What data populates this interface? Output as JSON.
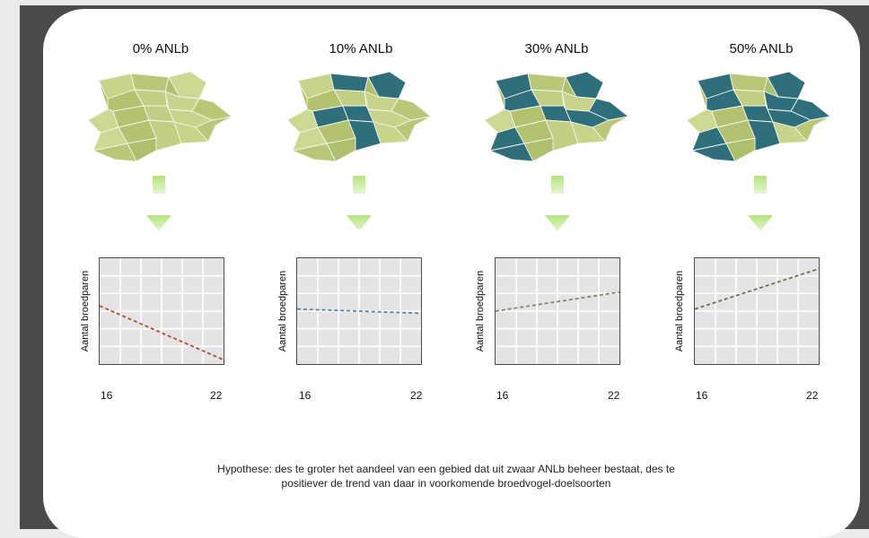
{
  "panels": [
    {
      "label": "0% ANLb",
      "trend": "decreasing",
      "line_color": "#b04a36"
    },
    {
      "label": "10% ANLb",
      "trend": "flat",
      "line_color": "#5a82a4"
    },
    {
      "label": "30% ANLb",
      "trend": "increasing",
      "line_color": "#7e8a5e"
    },
    {
      "label": "50% ANLb",
      "trend": "increasing",
      "line_color": "#62744e"
    }
  ],
  "chart": {
    "ylabel": "Aantal broedparen",
    "x_min_label": "16",
    "x_max_label": "22"
  },
  "caption": "Hypothese: des te groter het aandeel van een gebied dat uit zwaar ANLb beheer bestaat, des te positiever de trend van daar in voorkomende broedvogel-doelsoorten",
  "colors": {
    "field_light": "#c3d183",
    "field_mid": "#aebf6e",
    "field_heavy": "#2f6f7c",
    "arrow": "#b4e57e"
  }
}
